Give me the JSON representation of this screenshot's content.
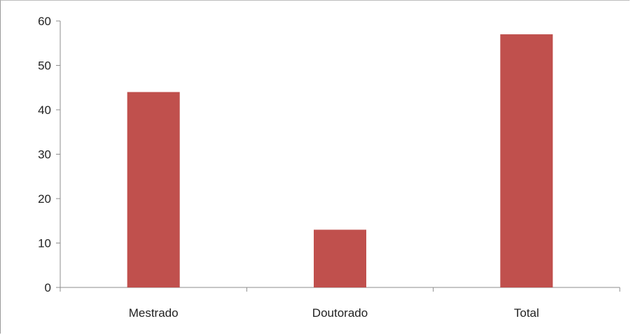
{
  "chart_data": {
    "type": "bar",
    "categories": [
      "Mestrado",
      "Doutorado",
      "Total"
    ],
    "values": [
      44,
      13,
      57
    ],
    "title": "",
    "xlabel": "",
    "ylabel": "",
    "ylim": [
      0,
      60
    ],
    "yticks": [
      0,
      10,
      20,
      30,
      40,
      50,
      60
    ],
    "grid": false,
    "legend": "none",
    "bar_color": "#c0504d",
    "axis_color": "#8c8c8c"
  }
}
